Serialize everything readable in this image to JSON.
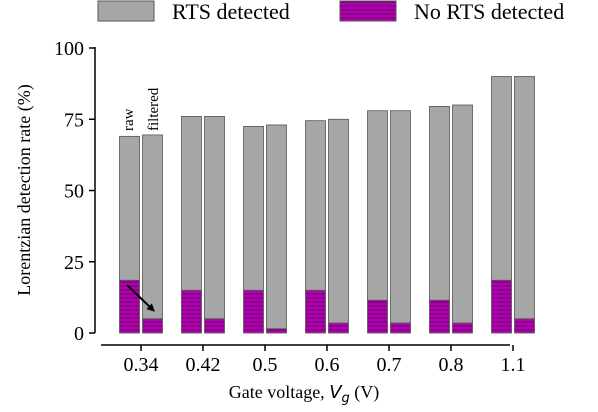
{
  "chart_data": {
    "type": "bar",
    "layout": "stacked-grouped",
    "xlabel_prefix": "Gate voltage, ",
    "xlabel_var": "V",
    "xlabel_sub": "g",
    "xlabel_suffix": " (V)",
    "ylabel": "Lorentzian detection rate (%)",
    "ylim": [
      0,
      100
    ],
    "yticks": [
      0,
      25,
      50,
      75,
      100
    ],
    "legend_position": "top",
    "categories": [
      "0.34",
      "0.42",
      "0.5",
      "0.6",
      "0.7",
      "0.8",
      "1.1"
    ],
    "bar_labels": [
      "raw",
      "filtered"
    ],
    "series": [
      {
        "name": "RTS detected",
        "color": "#a6a6a6",
        "raw": [
          50.5,
          61,
          57.5,
          59.5,
          66.5,
          68,
          71.5
        ],
        "filtered": [
          64.5,
          71,
          71.5,
          71.5,
          74.5,
          76.5,
          85
        ]
      },
      {
        "name": "No RTS detected",
        "color": "#b000b0",
        "raw": [
          18.5,
          15,
          15,
          15,
          11.5,
          11.5,
          18.5
        ],
        "filtered": [
          5,
          5,
          1.5,
          3.5,
          3.5,
          3.5,
          5
        ]
      }
    ]
  }
}
